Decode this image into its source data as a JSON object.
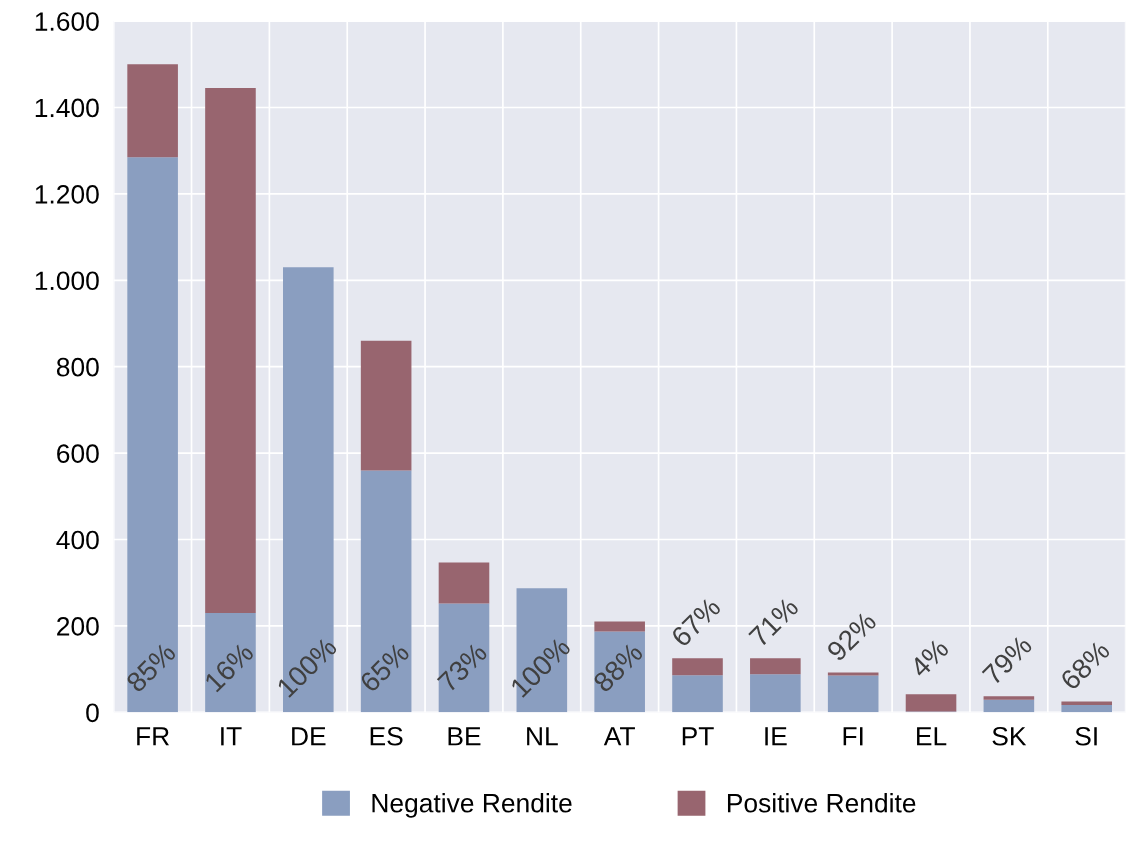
{
  "chart_data": {
    "type": "bar",
    "stacked": true,
    "categories": [
      "FR",
      "IT",
      "DE",
      "ES",
      "BE",
      "NL",
      "AT",
      "PT",
      "IE",
      "FI",
      "EL",
      "SK",
      "SI"
    ],
    "series": [
      {
        "name": "Negative Rendite",
        "color": "#8a9ec0",
        "values": [
          1285,
          230,
          1030,
          560,
          252,
          287,
          187,
          86,
          88,
          85,
          2,
          29,
          17
        ]
      },
      {
        "name": "Positive Rendite",
        "color": "#98656f",
        "values": [
          215,
          1215,
          0,
          300,
          95,
          0,
          23,
          39,
          37,
          7,
          40,
          8,
          8
        ]
      }
    ],
    "ylim": [
      0,
      1600
    ],
    "yticks": [
      0,
      200,
      400,
      600,
      800,
      {
        "value": 1000,
        "label": "1.000"
      },
      {
        "value": 1200,
        "label": "1.200"
      },
      {
        "value": 1400,
        "label": "1.400"
      },
      {
        "value": 1600,
        "label": "1.600"
      }
    ],
    "grid": true,
    "legend": "bottom",
    "annotations": [
      "85%",
      "16%",
      "100%",
      "65%",
      "73%",
      "100%",
      "88%",
      "67%",
      "71%",
      "92%",
      "4%",
      "79%",
      "68%"
    ]
  }
}
